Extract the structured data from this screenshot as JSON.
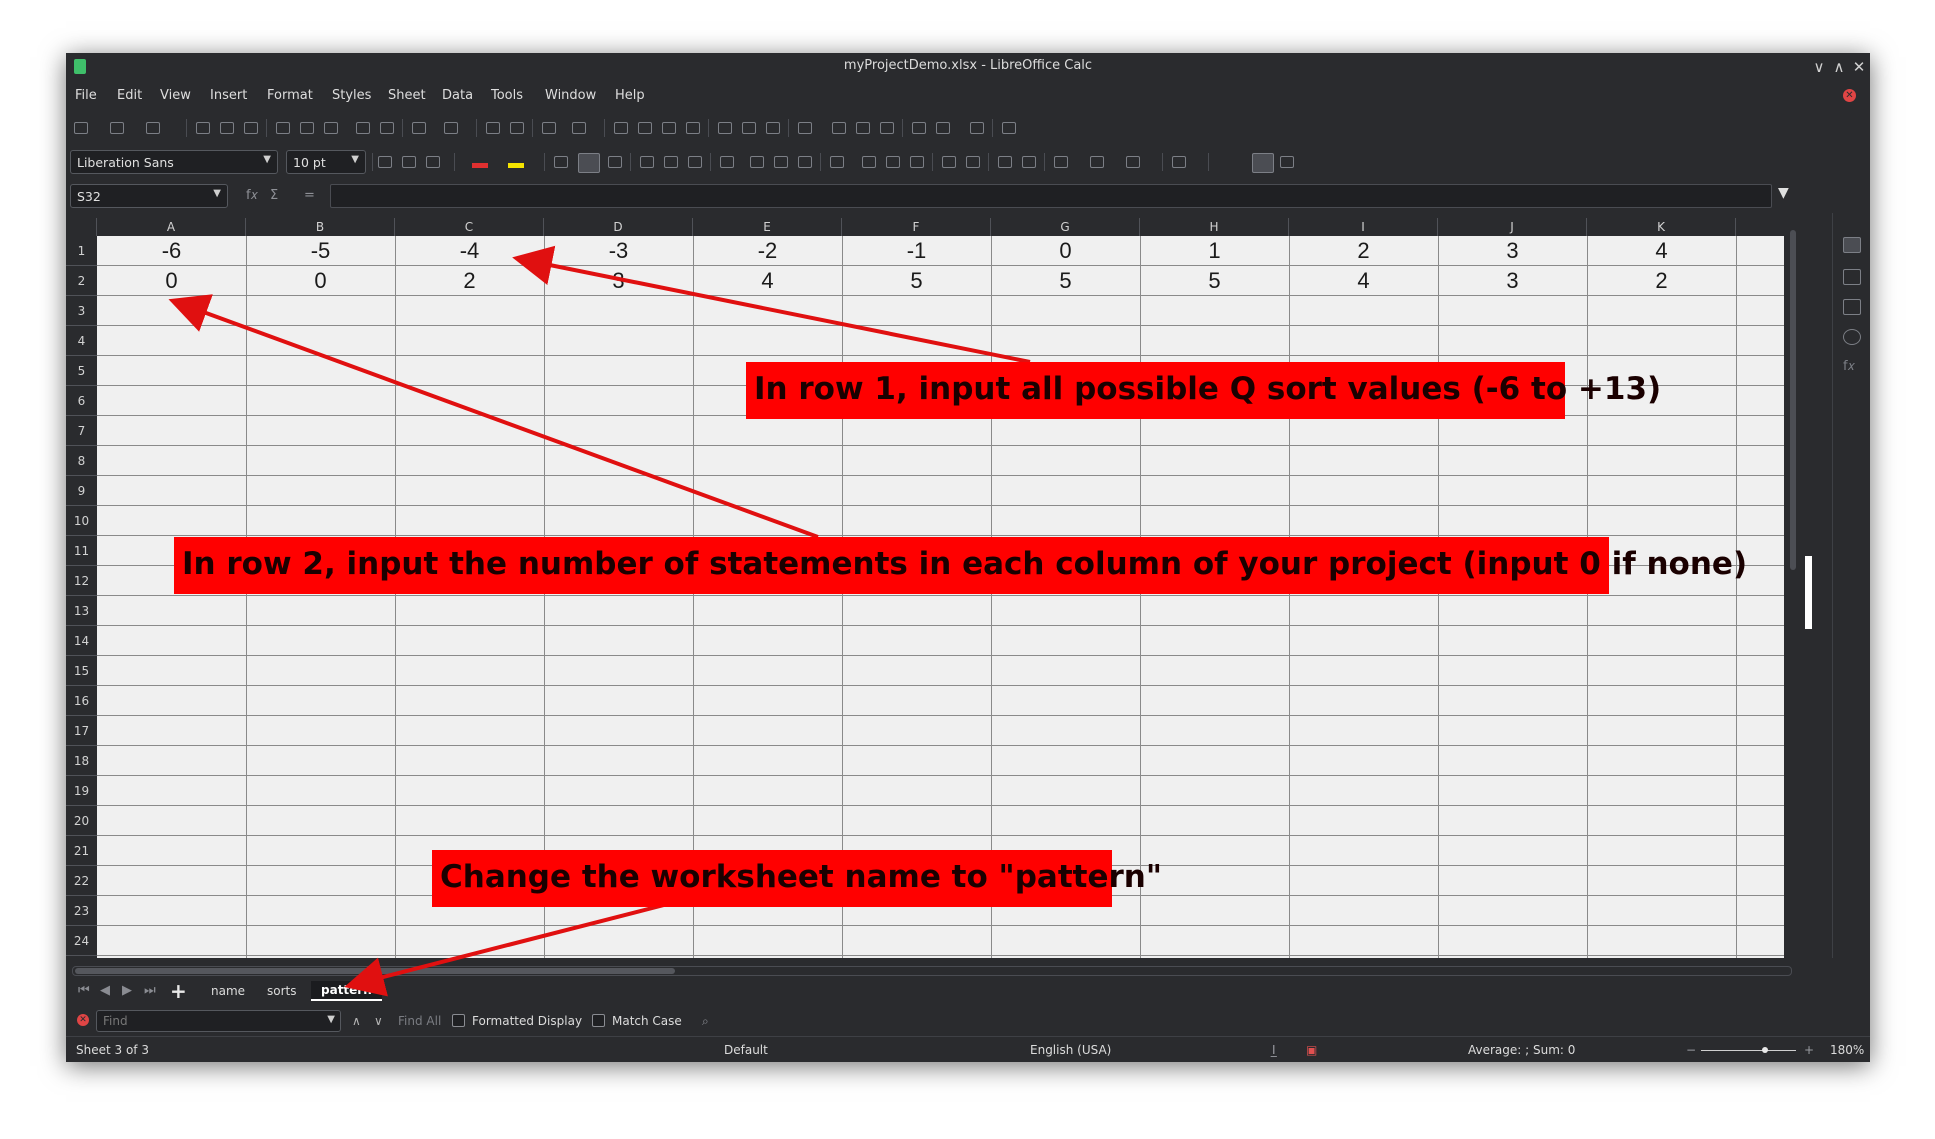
{
  "window": {
    "title": "myProjectDemo.xlsx - LibreOffice Calc",
    "controls": [
      "∨",
      "∧",
      "✕"
    ]
  },
  "menu": [
    "File",
    "Edit",
    "View",
    "Insert",
    "Format",
    "Styles",
    "Sheet",
    "Data",
    "Tools",
    "Window",
    "Help"
  ],
  "formatting": {
    "font_name": "Liberation Sans",
    "font_size": "10 pt",
    "font_color": "#e03030",
    "highlight_color": "#f5e400"
  },
  "formula_bar": {
    "name_box": "S32",
    "formula": ""
  },
  "columns": [
    "A",
    "B",
    "C",
    "D",
    "E",
    "F",
    "G",
    "H",
    "I",
    "J",
    "K"
  ],
  "rows": [
    "1",
    "2",
    "3",
    "4",
    "5",
    "6",
    "7",
    "8",
    "9",
    "10",
    "11",
    "12",
    "13",
    "14",
    "15",
    "16",
    "17",
    "18",
    "19",
    "20",
    "21",
    "22",
    "23",
    "24"
  ],
  "cells": {
    "row1": [
      "-6",
      "-5",
      "-4",
      "-3",
      "-2",
      "-1",
      "0",
      "1",
      "2",
      "3",
      "4"
    ],
    "row2": [
      "0",
      "0",
      "2",
      "3",
      "4",
      "5",
      "5",
      "5",
      "4",
      "3",
      "2"
    ]
  },
  "sheets": {
    "tabs": [
      "name",
      "sorts",
      "pattern"
    ],
    "active": "pattern"
  },
  "find_bar": {
    "placeholder": "Find",
    "find_all": "Find All",
    "formatted_display": "Formatted Display",
    "match_case": "Match Case"
  },
  "status": {
    "sheet": "Sheet 3 of 3",
    "page_style": "Default",
    "language": "English (USA)",
    "summary": "Average: ; Sum: 0",
    "zoom": "180%"
  },
  "annotations": {
    "row1_note": "In row 1, input all possible Q sort values (-6 to +13)",
    "row2_note": "In row 2, input the number of statements in each column of your project (input 0 if none)",
    "sheet_note": "Change the worksheet name to \"pattern\""
  },
  "colors": {
    "callout_bg": "#ff0000",
    "arrow": "#e01010",
    "window_bg": "#2a2b2e",
    "cell_bg": "#f0f0f0"
  }
}
